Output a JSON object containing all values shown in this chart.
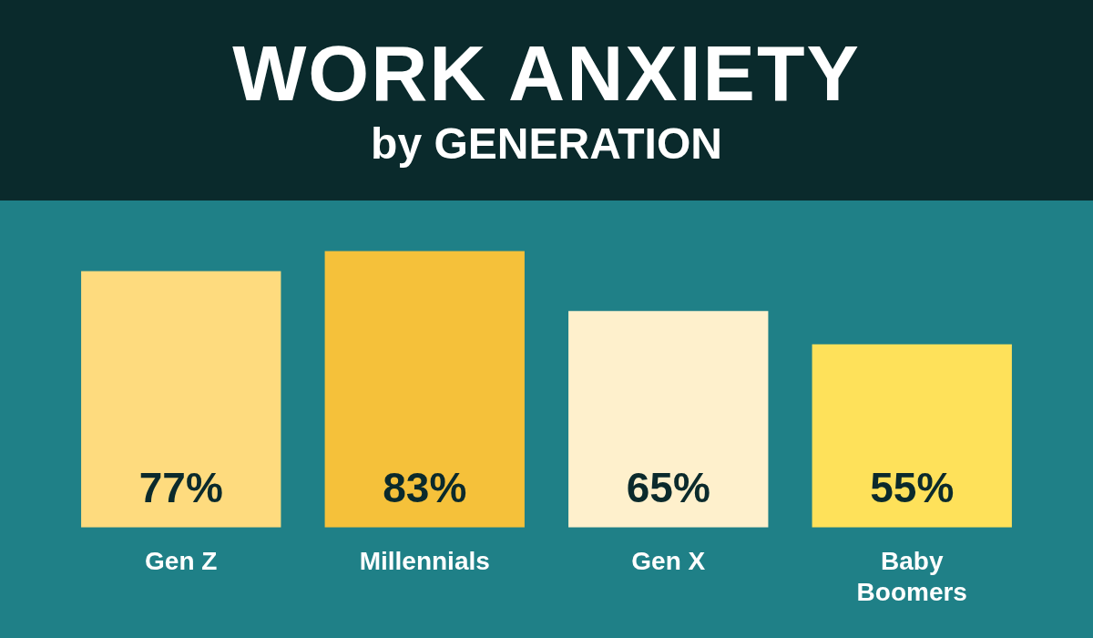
{
  "chart_data": {
    "type": "bar",
    "title": "WORK ANXIETY",
    "subtitle": "by GENERATION",
    "categories": [
      "Gen Z",
      "Millennials",
      "Gen X",
      "Baby Boomers"
    ],
    "values": [
      77,
      83,
      65,
      55
    ],
    "colors": [
      "#fedb7e",
      "#f5c13a",
      "#fef0cc",
      "#fee15a"
    ],
    "value_labels": [
      "77%",
      "83%",
      "65%",
      "55%"
    ],
    "grid": false,
    "legend": false
  }
}
